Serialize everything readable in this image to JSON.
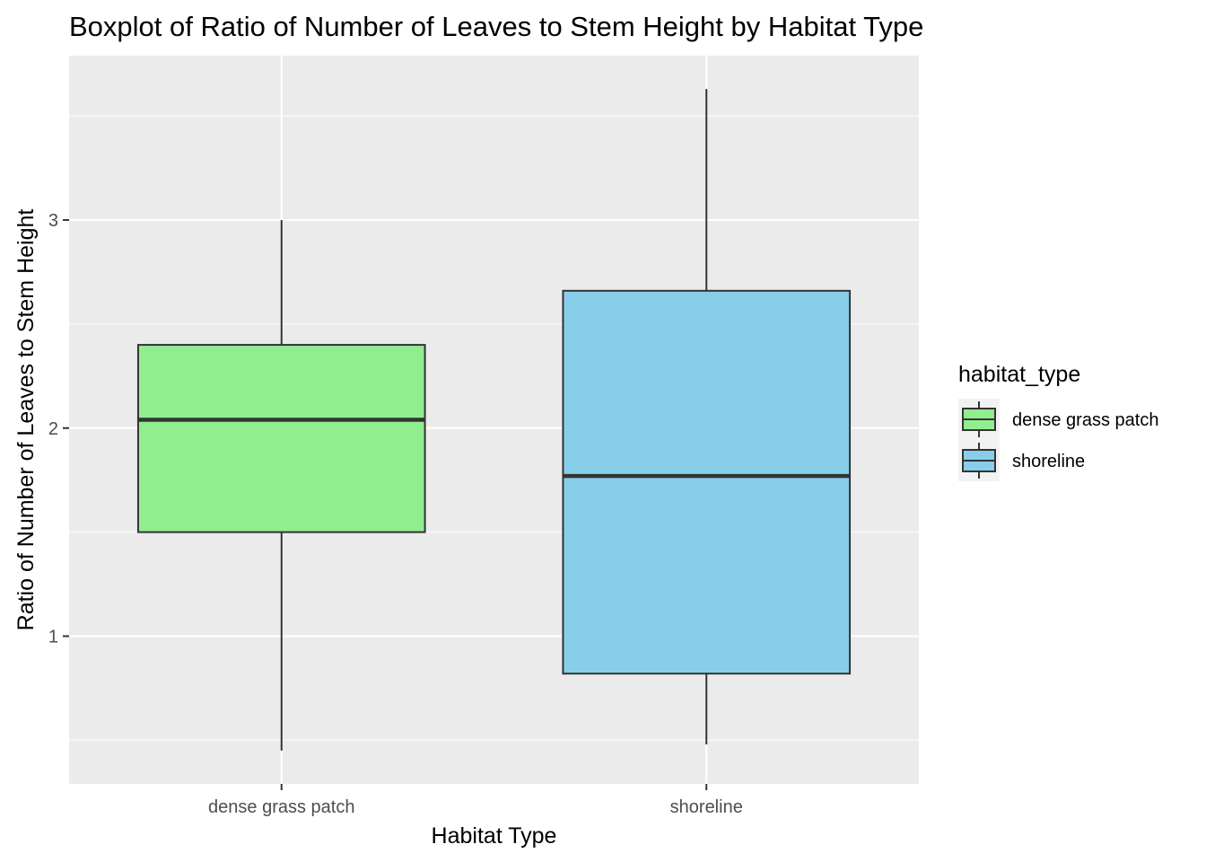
{
  "chart_data": {
    "type": "boxplot",
    "title": "Boxplot of Ratio of Number of Leaves to Stem Height by Habitat Type",
    "xlabel": "Habitat Type",
    "ylabel": "Ratio of Number of Leaves to Stem Height",
    "categories": [
      "dense grass patch",
      "shoreline"
    ],
    "ylim": [
      0.29,
      3.79
    ],
    "yticks": [
      1,
      2,
      3
    ],
    "yticks_labels": [
      "1",
      "2",
      "3"
    ],
    "grid": true,
    "boxes": [
      {
        "category": "dense grass patch",
        "min": 0.45,
        "q1": 1.5,
        "median": 2.04,
        "q3": 2.4,
        "max": 3.0
      },
      {
        "category": "shoreline",
        "min": 0.48,
        "q1": 0.82,
        "median": 1.77,
        "q3": 2.66,
        "max": 3.63
      }
    ],
    "legend": {
      "title": "habitat_type",
      "position": "right",
      "items": [
        {
          "label": "dense grass patch",
          "color": "#90ee90"
        },
        {
          "label": "shoreline",
          "color": "#87ceeb"
        }
      ]
    },
    "colors": {
      "panel_background": "#ebebeb",
      "grid": "#ffffff",
      "box_outline": "#333333"
    }
  }
}
